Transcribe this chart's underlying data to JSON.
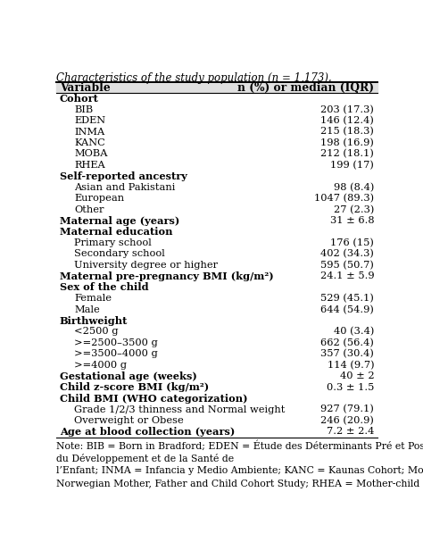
{
  "title": "Characteristics of the study population (n = 1,173).",
  "col1_header": "Variable",
  "col2_header": "n (%) or median (IQR)",
  "rows": [
    {
      "label": "Cohort",
      "value": "",
      "indent": 0,
      "bold": true
    },
    {
      "label": "BIB",
      "value": "203 (17.3)",
      "indent": 1,
      "bold": false
    },
    {
      "label": "EDEN",
      "value": "146 (12.4)",
      "indent": 1,
      "bold": false
    },
    {
      "label": "INMA",
      "value": "215 (18.3)",
      "indent": 1,
      "bold": false
    },
    {
      "label": "KANC",
      "value": "198 (16.9)",
      "indent": 1,
      "bold": false
    },
    {
      "label": "MOBA",
      "value": "212 (18.1)",
      "indent": 1,
      "bold": false
    },
    {
      "label": "RHEA",
      "value": "199 (17)",
      "indent": 1,
      "bold": false
    },
    {
      "label": "Self-reported ancestry",
      "value": "",
      "indent": 0,
      "bold": true
    },
    {
      "label": "Asian and Pakistani",
      "value": "98 (8.4)",
      "indent": 1,
      "bold": false
    },
    {
      "label": "European",
      "value": "1047 (89.3)",
      "indent": 1,
      "bold": false
    },
    {
      "label": "Other",
      "value": "27 (2.3)",
      "indent": 1,
      "bold": false
    },
    {
      "label": "Maternal age (years)",
      "value": "31 ± 6.8",
      "indent": 0,
      "bold": true
    },
    {
      "label": "Maternal education",
      "value": "",
      "indent": 0,
      "bold": true
    },
    {
      "label": "Primary school",
      "value": "176 (15)",
      "indent": 1,
      "bold": false
    },
    {
      "label": "Secondary school",
      "value": "402 (34.3)",
      "indent": 1,
      "bold": false
    },
    {
      "label": "University degree or higher",
      "value": "595 (50.7)",
      "indent": 1,
      "bold": false
    },
    {
      "label": "Maternal pre-pregnancy BMI (kg/m²)",
      "value": "24.1 ± 5.9",
      "indent": 0,
      "bold": true
    },
    {
      "label": "Sex of the child",
      "value": "",
      "indent": 0,
      "bold": true
    },
    {
      "label": "Female",
      "value": "529 (45.1)",
      "indent": 1,
      "bold": false
    },
    {
      "label": "Male",
      "value": "644 (54.9)",
      "indent": 1,
      "bold": false
    },
    {
      "label": "Birthweight",
      "value": "",
      "indent": 0,
      "bold": true
    },
    {
      "label": "<2500 g",
      "value": "40 (3.4)",
      "indent": 1,
      "bold": false
    },
    {
      "label": ">=2500–3500 g",
      "value": "662 (56.4)",
      "indent": 1,
      "bold": false
    },
    {
      "label": ">=3500–4000 g",
      "value": "357 (30.4)",
      "indent": 1,
      "bold": false
    },
    {
      "label": ">=4000 g",
      "value": "114 (9.7)",
      "indent": 1,
      "bold": false
    },
    {
      "label": "Gestational age (weeks)",
      "value": "40 ± 2",
      "indent": 0,
      "bold": true
    },
    {
      "label": "Child z-score BMI (kg/m²)",
      "value": "0.3 ± 1.5",
      "indent": 0,
      "bold": true
    },
    {
      "label": "Child BMI (WHO categorization)",
      "value": "",
      "indent": 0,
      "bold": true
    },
    {
      "label": "Grade 1/2/3 thinness and Normal weight",
      "value": "927 (79.1)",
      "indent": 1,
      "bold": false
    },
    {
      "label": "Overweight or Obese",
      "value": "246 (20.9)",
      "indent": 1,
      "bold": false
    },
    {
      "label": "Age at blood collection (years)",
      "value": "7.2 ± 2.4",
      "indent": 0,
      "bold": true
    }
  ],
  "note_lines": [
    "Note: BIB = Born in Bradford; EDEN = Étude des Déterminants Pré et Postnatals",
    "du Développement et de la Santé de",
    "l’Enfant; INMA = Infancia y Medio Ambiente; KANC = Kaunas Cohort; MoBa =",
    "Norwegian Mother, Father and Child Cohort Study; RHEA = Mother-child"
  ],
  "bg_color": "#ffffff",
  "line_color": "#000000",
  "text_color": "#000000",
  "font_size": 8.2,
  "header_font_size": 8.8,
  "title_font_size": 8.5,
  "note_font_size": 7.8
}
